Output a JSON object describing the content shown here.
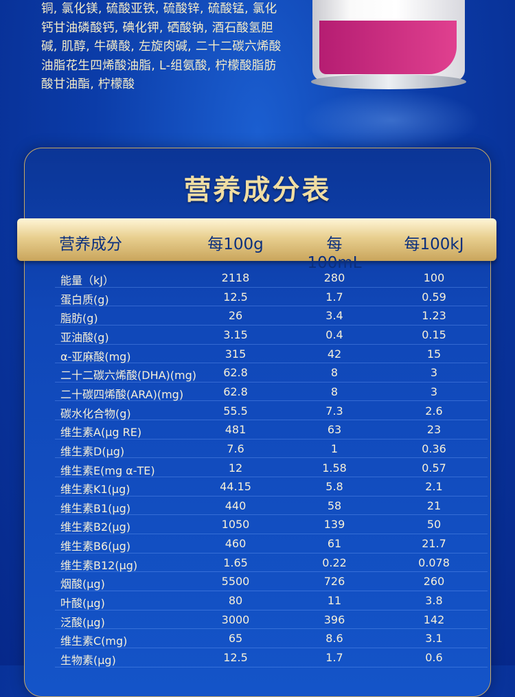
{
  "ingredients_text": "铜, 氯化镁, 硫酸亚铁, 硫酸锌, 硫酸锰, 氯化钙甘油磷酸钙, 碘化钾, 硒酸钠, 酒石酸氢胆碱, 肌醇, 牛磺酸, 左旋肉碱, 二十二碳六烯酸油脂花生四烯酸油脂, L-组氨酸, 柠檬酸脂肪酸甘油酯, 柠檬酸",
  "title": "营养成分表",
  "headers": [
    "营养成分",
    "每100g",
    "每100mL",
    "每100kJ"
  ],
  "rows": [
    [
      "能量（kJ）",
      "2118",
      "280",
      "100"
    ],
    [
      "蛋白质(g)",
      "12.5",
      "1.7",
      "0.59"
    ],
    [
      "脂肪(g)",
      "26",
      "3.4",
      "1.23"
    ],
    [
      "亚油酸(g)",
      "3.15",
      "0.4",
      "0.15"
    ],
    [
      "α-亚麻酸(mg)",
      "315",
      "42",
      "15"
    ],
    [
      "二十二碳六烯酸(DHA)(mg)",
      "62.8",
      "8",
      "3"
    ],
    [
      "二十碳四烯酸(ARA)(mg)",
      "62.8",
      "8",
      "3"
    ],
    [
      "碳水化合物(g)",
      "55.5",
      "7.3",
      "2.6"
    ],
    [
      "维生素A(μg RE)",
      "481",
      "63",
      "23"
    ],
    [
      "维生素D(μg)",
      "7.6",
      "1",
      "0.36"
    ],
    [
      "维生素E(mg α-TE)",
      "12",
      "1.58",
      "0.57"
    ],
    [
      "维生素K1(μg)",
      "44.15",
      "5.8",
      "2.1"
    ],
    [
      "维生素B1(μg)",
      "440",
      "58",
      "21"
    ],
    [
      "维生素B2(μg)",
      "1050",
      "139",
      "50"
    ],
    [
      "维生素B6(μg)",
      "460",
      "61",
      "21.7"
    ],
    [
      "维生素B12(μg)",
      "1.65",
      "0.22",
      "0.078"
    ],
    [
      "烟酸(μg)",
      "5500",
      "726",
      "260"
    ],
    [
      "叶酸(μg)",
      "80",
      "11",
      "3.8"
    ],
    [
      "泛酸(μg)",
      "3000",
      "396",
      "142"
    ],
    [
      "维生素C(mg)",
      "65",
      "8.6",
      "3.1"
    ],
    [
      "生物素(μg)",
      "12.5",
      "1.7",
      "0.6"
    ]
  ],
  "colors": {
    "background": "#0b3ca8",
    "gold": "#e8cf8f",
    "text": "#f6f0d8",
    "header_text": "#0b2f7d"
  }
}
